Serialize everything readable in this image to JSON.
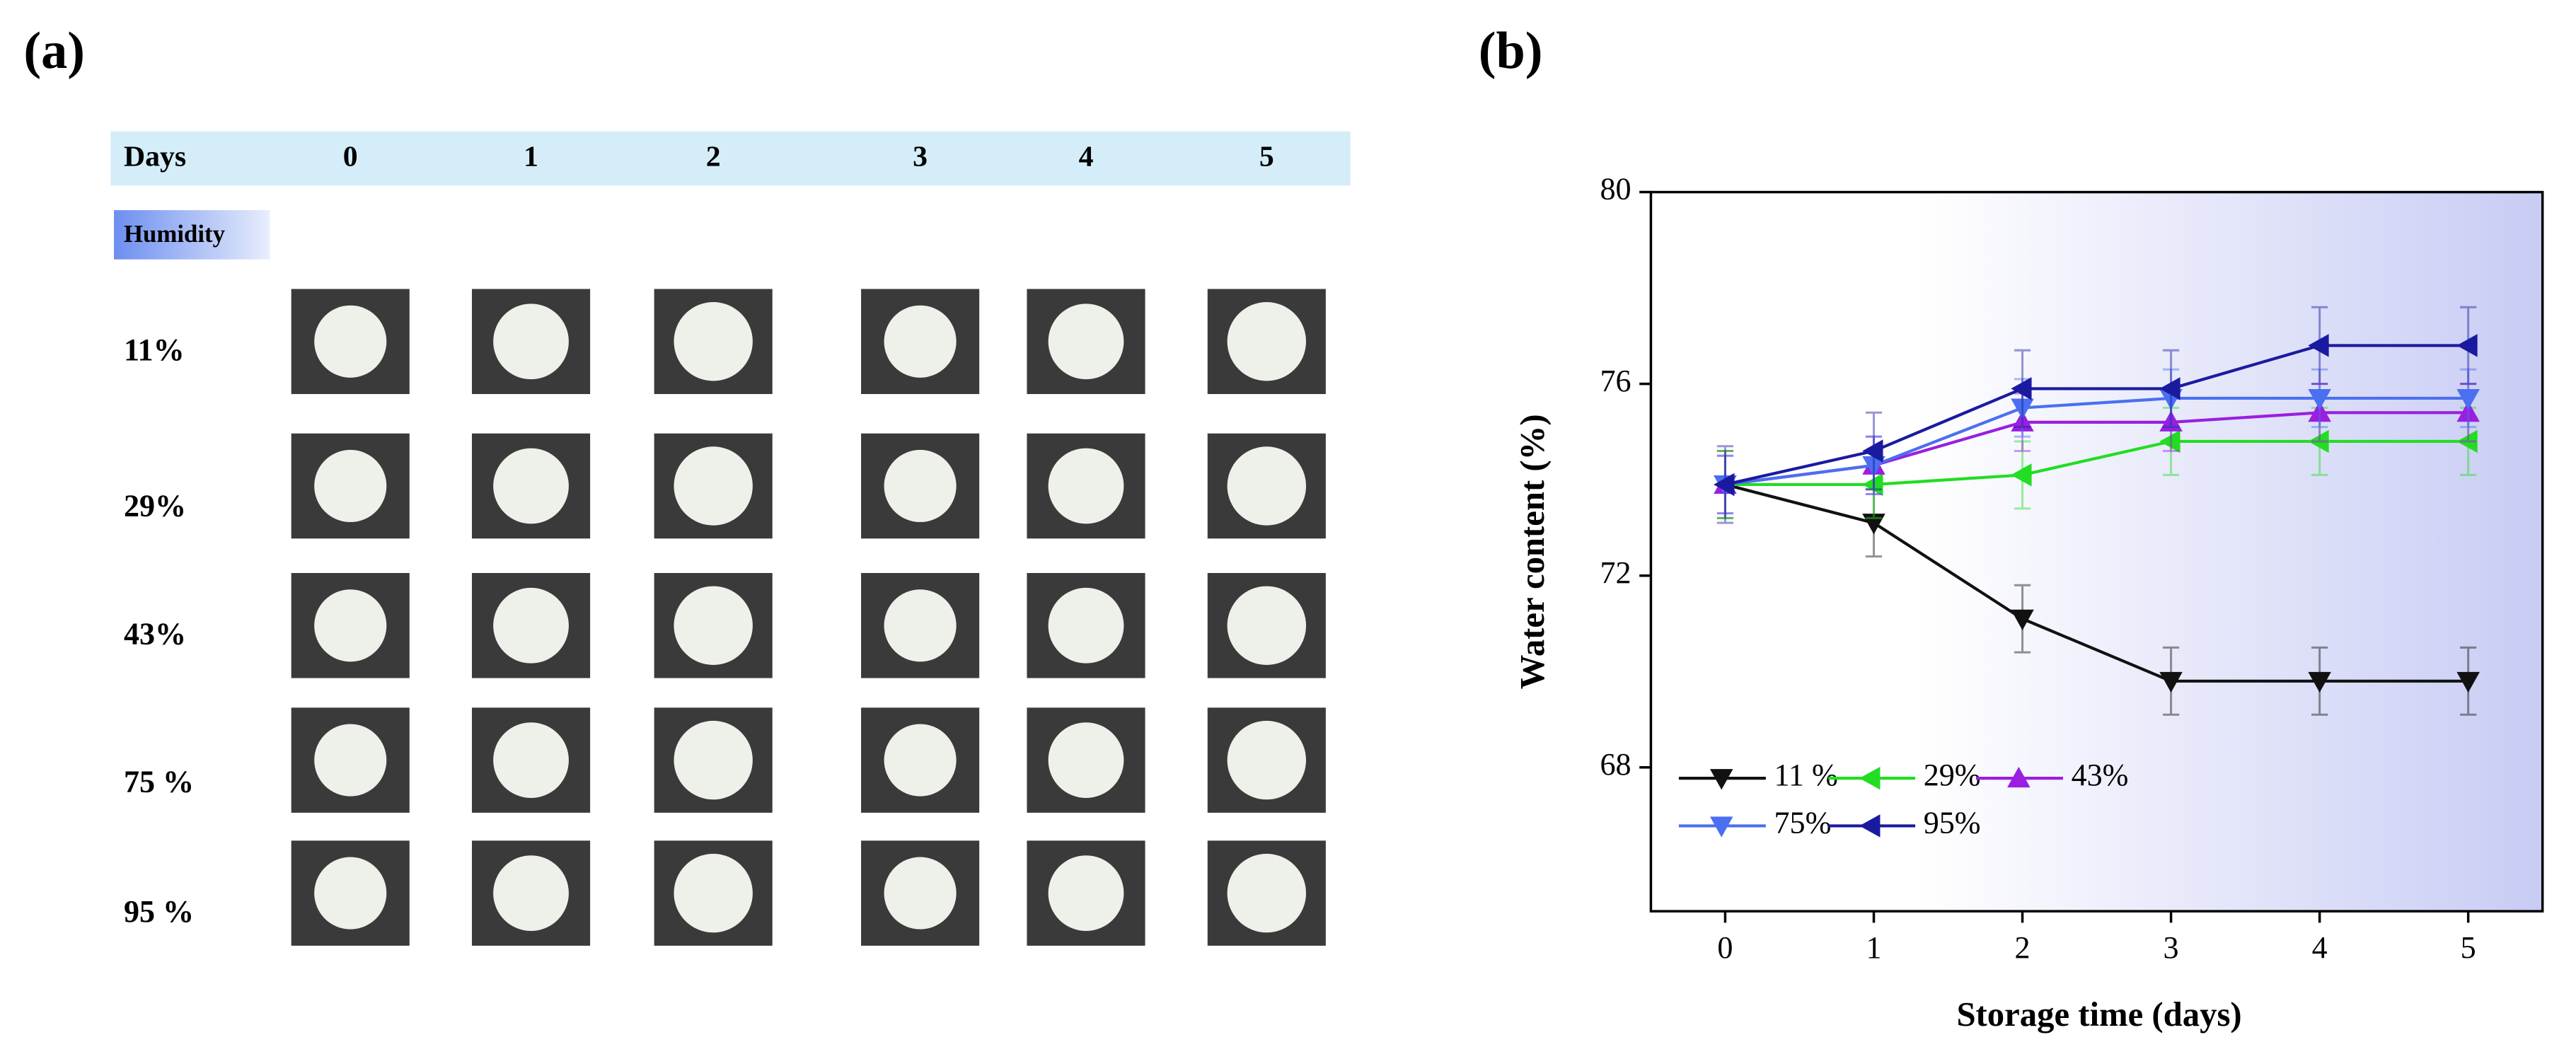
{
  "panel_a": {
    "label": "(a)",
    "header": "Days",
    "days": [
      "0",
      "1",
      "2",
      "3",
      "4",
      "5"
    ],
    "humidity_label": "Humidity",
    "rows": [
      "11%",
      "29%",
      "43%",
      "75 %",
      "95 %"
    ]
  },
  "chart_data": {
    "type": "line",
    "label": "(b)",
    "xlabel": "Storage time (days)",
    "ylabel": "Water content (%)",
    "x": [
      0,
      1,
      2,
      3,
      4,
      5
    ],
    "xlim": [
      -0.5,
      5.5
    ],
    "xticks": [
      0,
      1,
      2,
      3,
      4,
      5
    ],
    "ylim": [
      65,
      80
    ],
    "yticks": [
      68,
      72,
      76,
      80
    ],
    "series": [
      {
        "name": "11 %",
        "color": "#111111",
        "marker": "down",
        "values": [
          73.9,
          73.1,
          71.1,
          69.8,
          69.8,
          69.8
        ],
        "errors": [
          0.7,
          0.7,
          0.7,
          0.7,
          0.7,
          0.7
        ]
      },
      {
        "name": "29%",
        "color": "#22dd22",
        "marker": "left",
        "values": [
          73.9,
          73.9,
          74.1,
          74.8,
          74.8,
          74.8
        ],
        "errors": [
          0.7,
          0.7,
          0.7,
          0.7,
          0.7,
          0.7
        ]
      },
      {
        "name": "43%",
        "color": "#9a1fe0",
        "marker": "up",
        "values": [
          73.9,
          74.3,
          75.2,
          75.2,
          75.4,
          75.4
        ],
        "errors": [
          0.6,
          0.6,
          0.6,
          0.6,
          0.6,
          0.6
        ]
      },
      {
        "name": "75%",
        "color": "#4a6ff0",
        "marker": "down",
        "values": [
          73.9,
          74.3,
          75.5,
          75.7,
          75.7,
          75.7
        ],
        "errors": [
          0.6,
          0.6,
          0.6,
          0.6,
          0.6,
          0.6
        ]
      },
      {
        "name": "95%",
        "color": "#1a1aa0",
        "marker": "left",
        "values": [
          73.9,
          74.6,
          75.9,
          75.9,
          76.8,
          76.8
        ],
        "errors": [
          0.8,
          0.8,
          0.8,
          0.8,
          0.8,
          0.8
        ]
      }
    ]
  }
}
